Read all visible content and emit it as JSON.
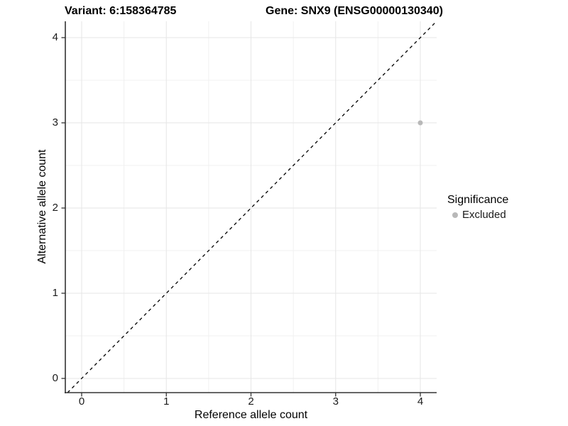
{
  "chart_data": {
    "type": "scatter",
    "titles": [
      "Variant: 6:158364785",
      "Gene: SNX9 (ENSG00000130340)"
    ],
    "xlabel": "Reference allele count",
    "ylabel": "Alternative allele count",
    "xlim": [
      -0.2,
      4.2
    ],
    "ylim": [
      -0.2,
      4.2
    ],
    "x_ticks": [
      0,
      1,
      2,
      3,
      4
    ],
    "y_ticks": [
      0,
      1,
      2,
      3,
      4
    ],
    "minor_grid_interval": 0.5,
    "grid": true,
    "legend_title": "Significance",
    "legend_position": "right",
    "series": [
      {
        "name": "Excluded",
        "color": "#b8b8b8",
        "points": [
          {
            "x": 4,
            "y": 3
          }
        ]
      }
    ],
    "reference_line": {
      "slope": 1,
      "intercept": 0,
      "style": "dashed"
    },
    "colors": {
      "background": "#ffffff",
      "grid_major": "#e6e6e6",
      "grid_minor": "#f0f0f0",
      "axis": "#333333",
      "reference_line": "#000000",
      "point": "#b8b8b8"
    }
  }
}
